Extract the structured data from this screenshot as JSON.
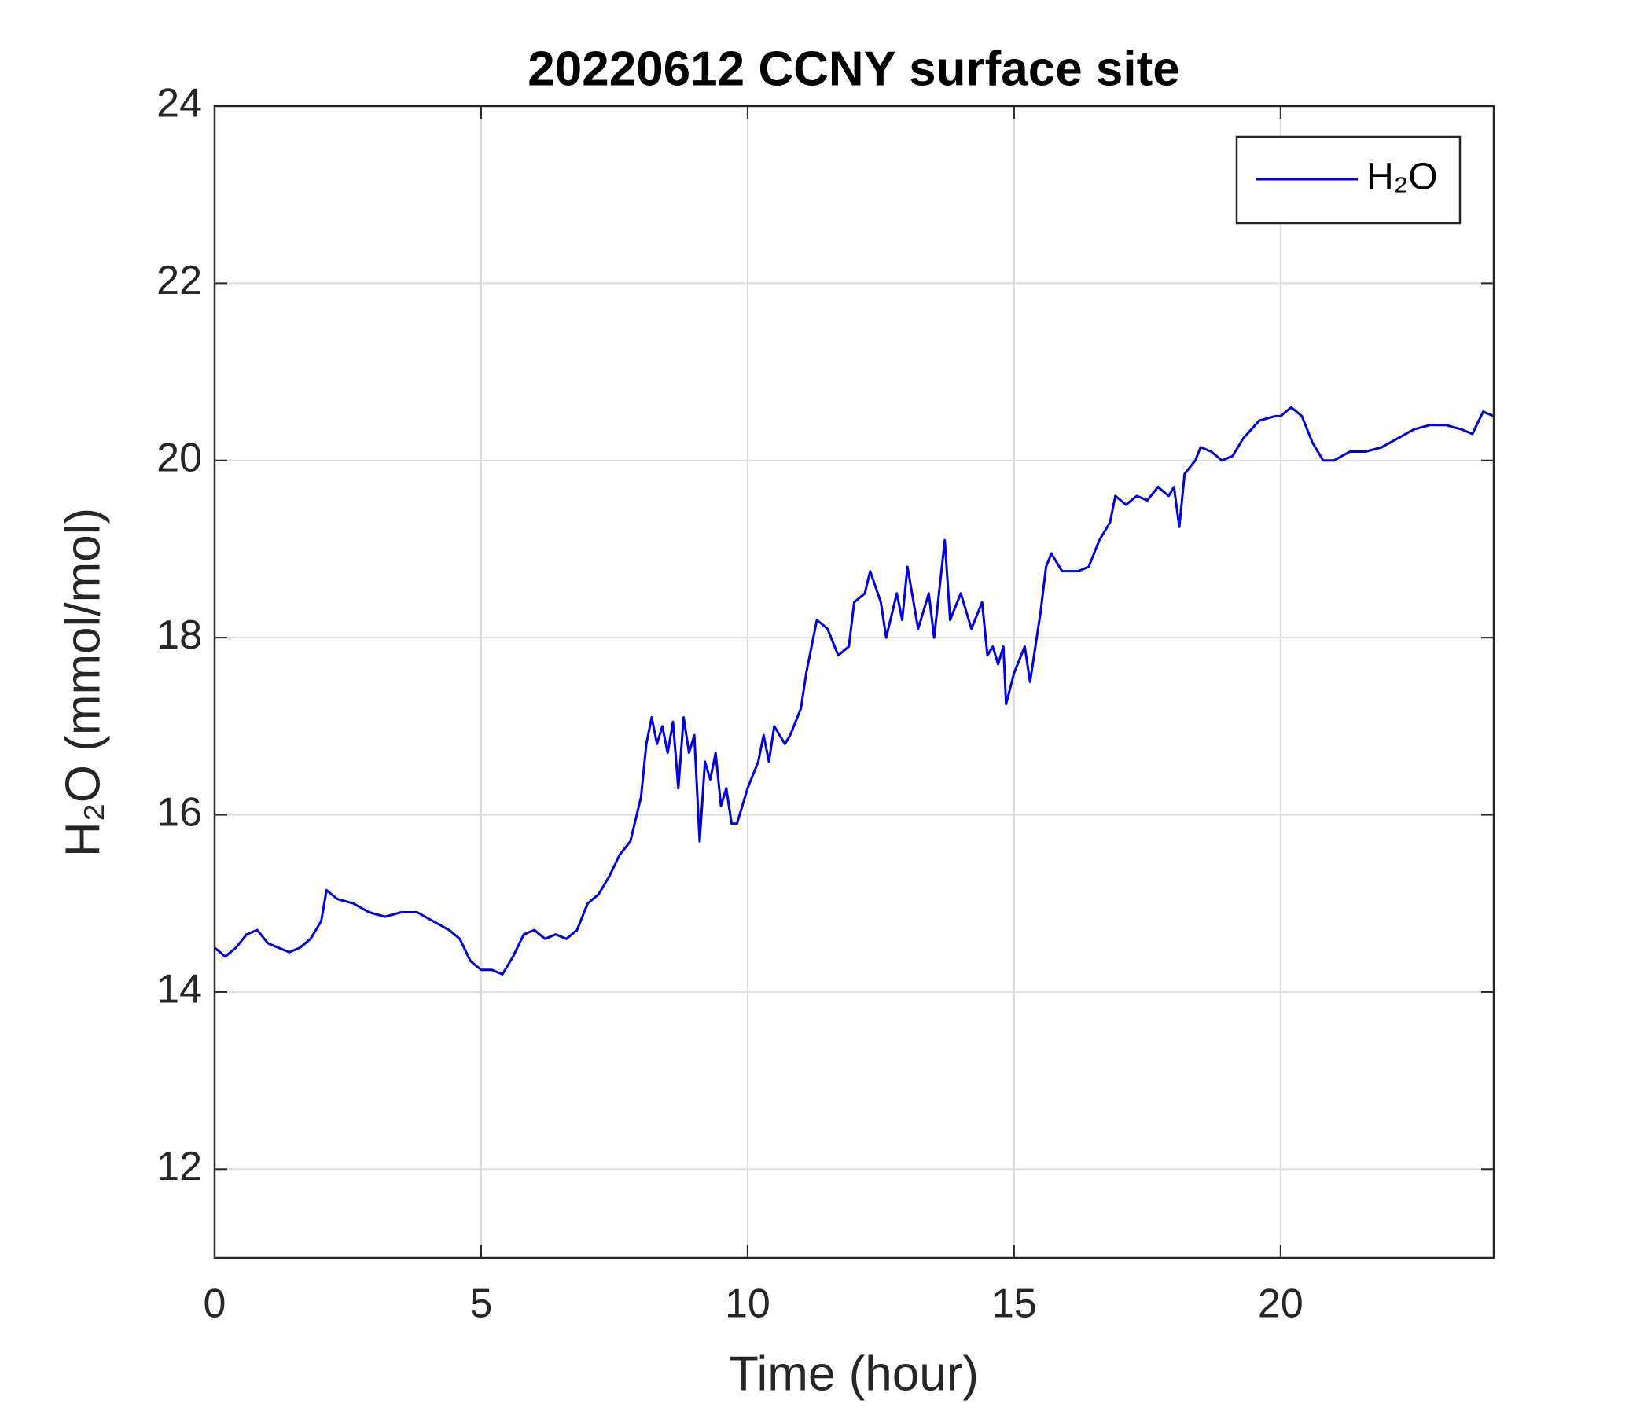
{
  "chart_data": {
    "type": "line",
    "title": "20220612 CCNY surface site",
    "xlabel": "Time (hour)",
    "ylabel": "H₂O (mmol/mol)",
    "xlim": [
      0,
      24
    ],
    "ylim": [
      11,
      24
    ],
    "xticks": [
      0,
      5,
      10,
      15,
      20
    ],
    "yticks": [
      12,
      14,
      16,
      18,
      20,
      22,
      24
    ],
    "grid": true,
    "legend": "northeast",
    "x": [
      0,
      0.2,
      0.4,
      0.6,
      0.8,
      1.0,
      1.2,
      1.4,
      1.6,
      1.8,
      2.0,
      2.1,
      2.3,
      2.6,
      2.9,
      3.2,
      3.5,
      3.8,
      4.1,
      4.4,
      4.6,
      4.8,
      5.0,
      5.2,
      5.4,
      5.6,
      5.8,
      6.0,
      6.2,
      6.4,
      6.6,
      6.8,
      7.0,
      7.2,
      7.4,
      7.6,
      7.8,
      8.0,
      8.1,
      8.2,
      8.3,
      8.4,
      8.5,
      8.6,
      8.7,
      8.8,
      8.9,
      9.0,
      9.1,
      9.2,
      9.3,
      9.4,
      9.5,
      9.6,
      9.7,
      9.8,
      10.0,
      10.2,
      10.3,
      10.4,
      10.5,
      10.7,
      10.8,
      11.0,
      11.1,
      11.2,
      11.3,
      11.5,
      11.7,
      11.9,
      12.0,
      12.2,
      12.3,
      12.5,
      12.6,
      12.8,
      12.9,
      13.0,
      13.2,
      13.4,
      13.5,
      13.7,
      13.8,
      14.0,
      14.2,
      14.4,
      14.5,
      14.6,
      14.7,
      14.8,
      14.85,
      15.0,
      15.2,
      15.3,
      15.5,
      15.6,
      15.7,
      15.9,
      16.2,
      16.4,
      16.6,
      16.8,
      16.9,
      17.1,
      17.3,
      17.5,
      17.7,
      17.9,
      18.0,
      18.1,
      18.2,
      18.4,
      18.5,
      18.7,
      18.9,
      19.1,
      19.3,
      19.6,
      19.9,
      20.0,
      20.2,
      20.4,
      20.6,
      20.8,
      21.0,
      21.3,
      21.6,
      21.9,
      22.2,
      22.5,
      22.8,
      23.1,
      23.4,
      23.6,
      23.8,
      24.0
    ],
    "series": [
      {
        "name": "H₂O",
        "color": "#0000ee",
        "values": [
          14.5,
          14.4,
          14.5,
          14.65,
          14.7,
          14.55,
          14.5,
          14.45,
          14.5,
          14.6,
          14.8,
          15.15,
          15.05,
          15.0,
          14.9,
          14.85,
          14.9,
          14.9,
          14.8,
          14.7,
          14.6,
          14.35,
          14.25,
          14.25,
          14.2,
          14.4,
          14.65,
          14.7,
          14.6,
          14.65,
          14.6,
          14.7,
          15.0,
          15.1,
          15.3,
          15.55,
          15.7,
          16.2,
          16.8,
          17.1,
          16.8,
          17.0,
          16.7,
          17.05,
          16.3,
          17.1,
          16.7,
          16.9,
          15.7,
          16.6,
          16.4,
          16.7,
          16.1,
          16.3,
          15.9,
          15.9,
          16.3,
          16.6,
          16.9,
          16.6,
          17.0,
          16.8,
          16.9,
          17.2,
          17.6,
          17.9,
          18.2,
          18.1,
          17.8,
          17.9,
          18.4,
          18.5,
          18.75,
          18.4,
          18.0,
          18.5,
          18.2,
          18.8,
          18.1,
          18.5,
          18.0,
          19.1,
          18.2,
          18.5,
          18.1,
          18.4,
          17.8,
          17.9,
          17.7,
          17.9,
          17.25,
          17.6,
          17.9,
          17.5,
          18.3,
          18.8,
          18.95,
          18.75,
          18.75,
          18.8,
          19.1,
          19.3,
          19.6,
          19.5,
          19.6,
          19.55,
          19.7,
          19.6,
          19.7,
          19.25,
          19.85,
          20.0,
          20.15,
          20.1,
          20.0,
          20.05,
          20.25,
          20.45,
          20.5,
          20.5,
          20.6,
          20.5,
          20.2,
          20.0,
          20.0,
          20.1,
          20.1,
          20.15,
          20.25,
          20.35,
          20.4,
          20.4,
          20.35,
          20.3,
          20.55,
          20.5
        ]
      }
    ]
  }
}
